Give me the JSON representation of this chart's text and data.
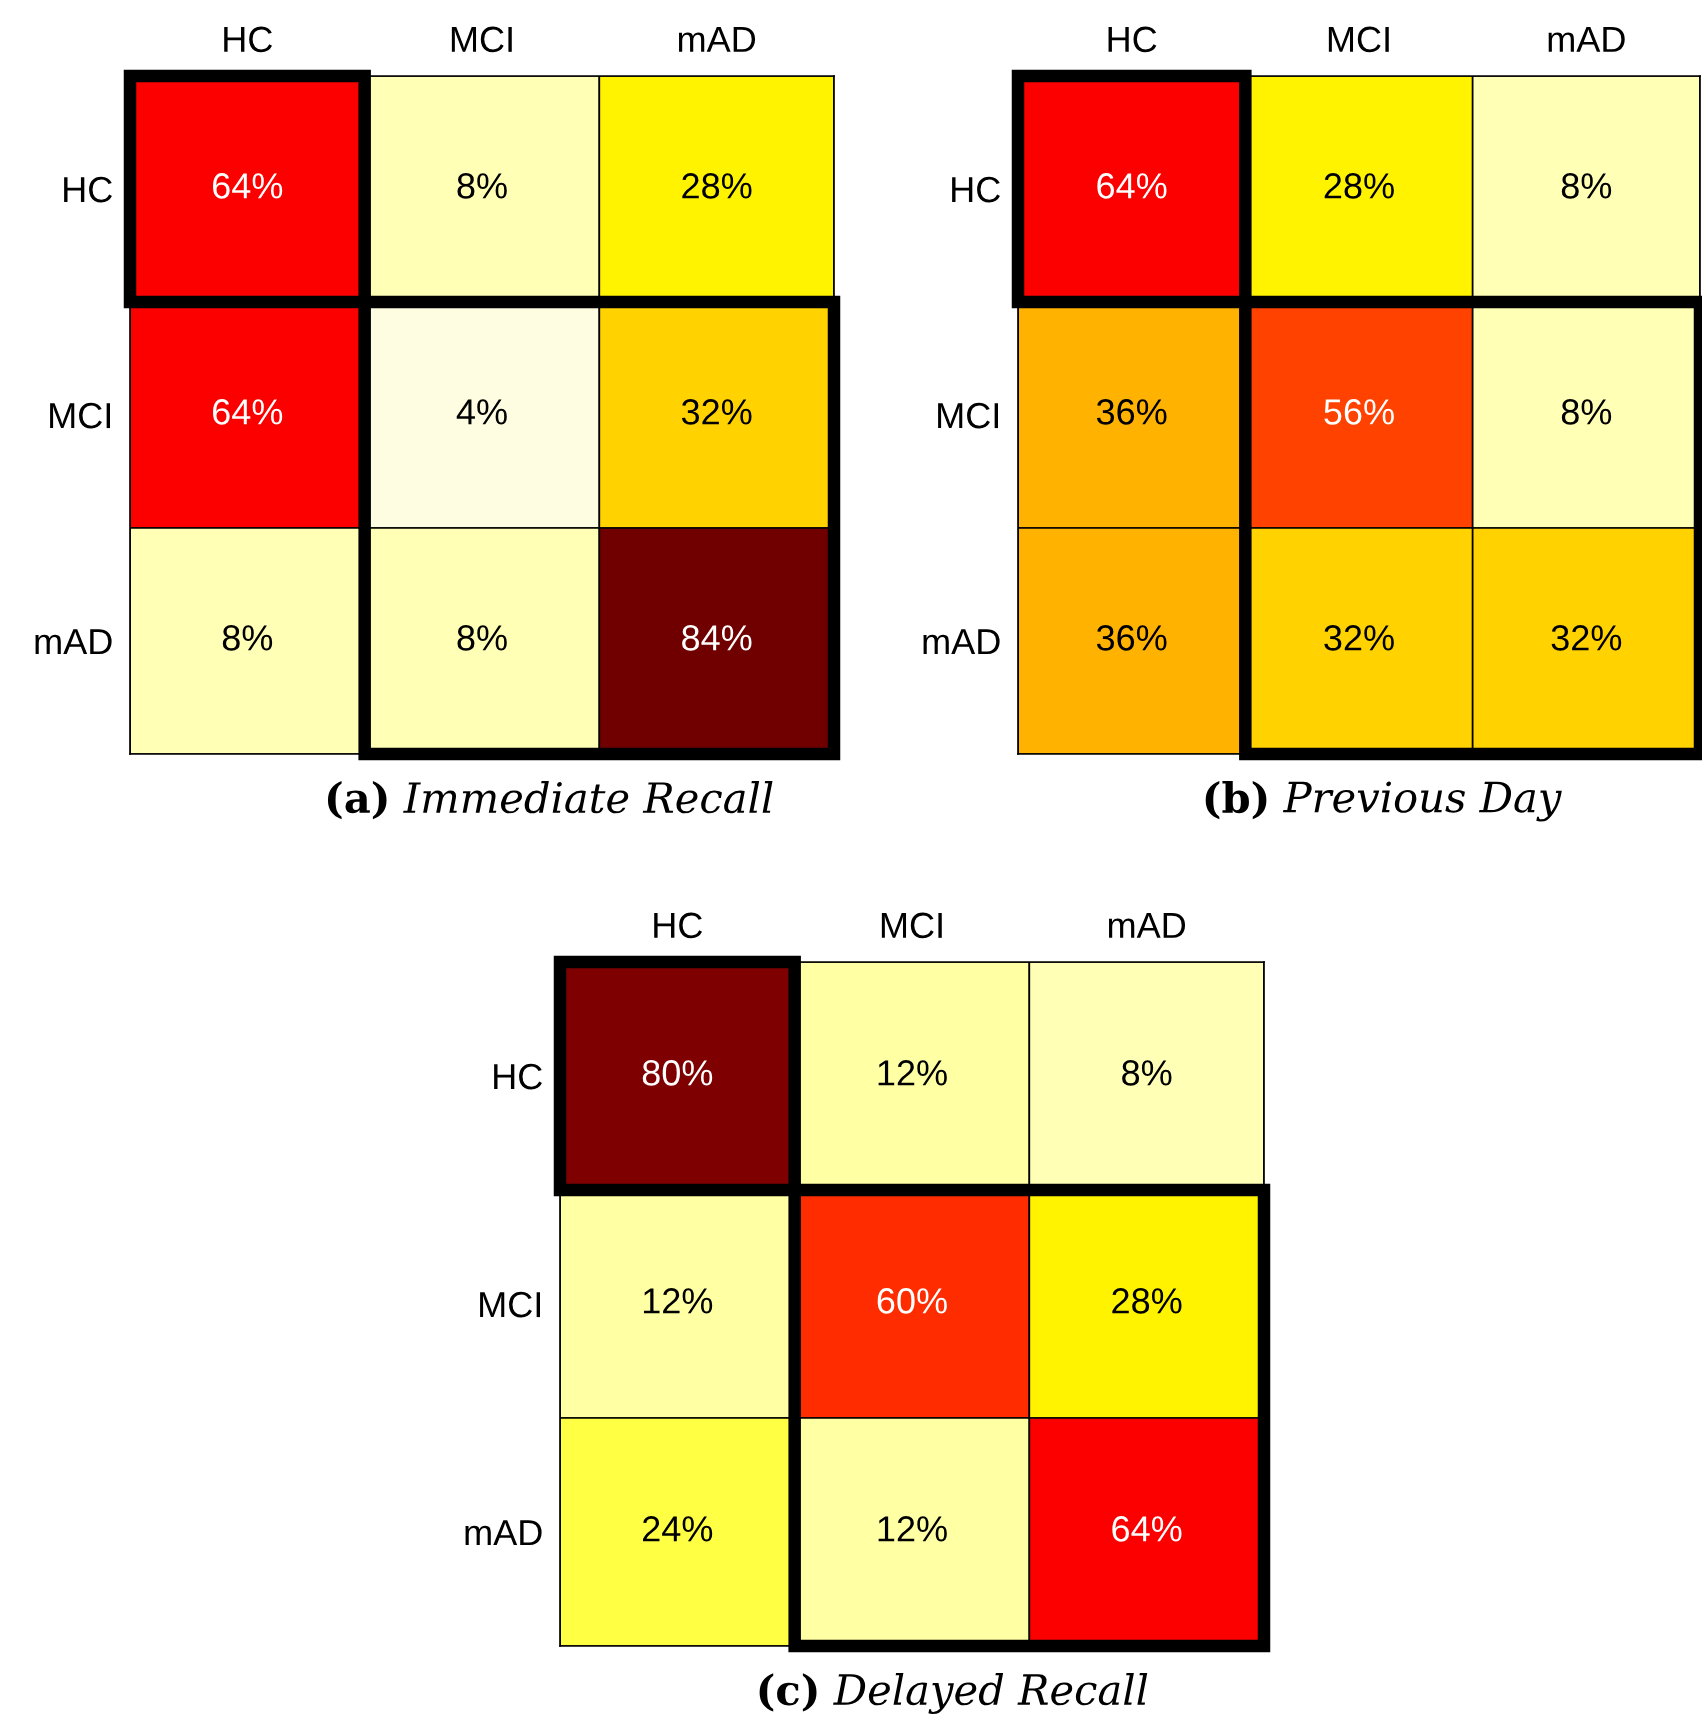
{
  "chart_data": [
    {
      "type": "heatmap",
      "title": "(a) Immediate Recall",
      "categories": [
        "HC",
        "MCI",
        "mAD"
      ],
      "y_categories": [
        "HC",
        "MCI",
        "mAD"
      ],
      "cells": [
        [
          64,
          8,
          28
        ],
        [
          64,
          4,
          32
        ],
        [
          8,
          8,
          84
        ]
      ],
      "cell_labels": [
        [
          "64%",
          "8%",
          "28%"
        ],
        [
          "64%",
          "4%",
          "32%"
        ],
        [
          "8%",
          "8%",
          "84%"
        ]
      ]
    },
    {
      "type": "heatmap",
      "title": "(b) Previous Day",
      "categories": [
        "HC",
        "MCI",
        "mAD"
      ],
      "y_categories": [
        "HC",
        "MCI",
        "mAD"
      ],
      "cells": [
        [
          64,
          28,
          8
        ],
        [
          36,
          56,
          8
        ],
        [
          36,
          32,
          32
        ]
      ],
      "cell_labels": [
        [
          "64%",
          "28%",
          "8%"
        ],
        [
          "36%",
          "56%",
          "8%"
        ],
        [
          "36%",
          "32%",
          "32%"
        ]
      ]
    },
    {
      "type": "heatmap",
      "title": "(c) Delayed Recall",
      "categories": [
        "HC",
        "MCI",
        "mAD"
      ],
      "y_categories": [
        "HC",
        "MCI",
        "mAD"
      ],
      "cells": [
        [
          80,
          12,
          8
        ],
        [
          12,
          60,
          28
        ],
        [
          24,
          12,
          64
        ]
      ],
      "cell_labels": [
        [
          "80%",
          "12%",
          "8%"
        ],
        [
          "12%",
          "60%",
          "28%"
        ],
        [
          "24%",
          "12%",
          "64%"
        ]
      ]
    }
  ]
}
